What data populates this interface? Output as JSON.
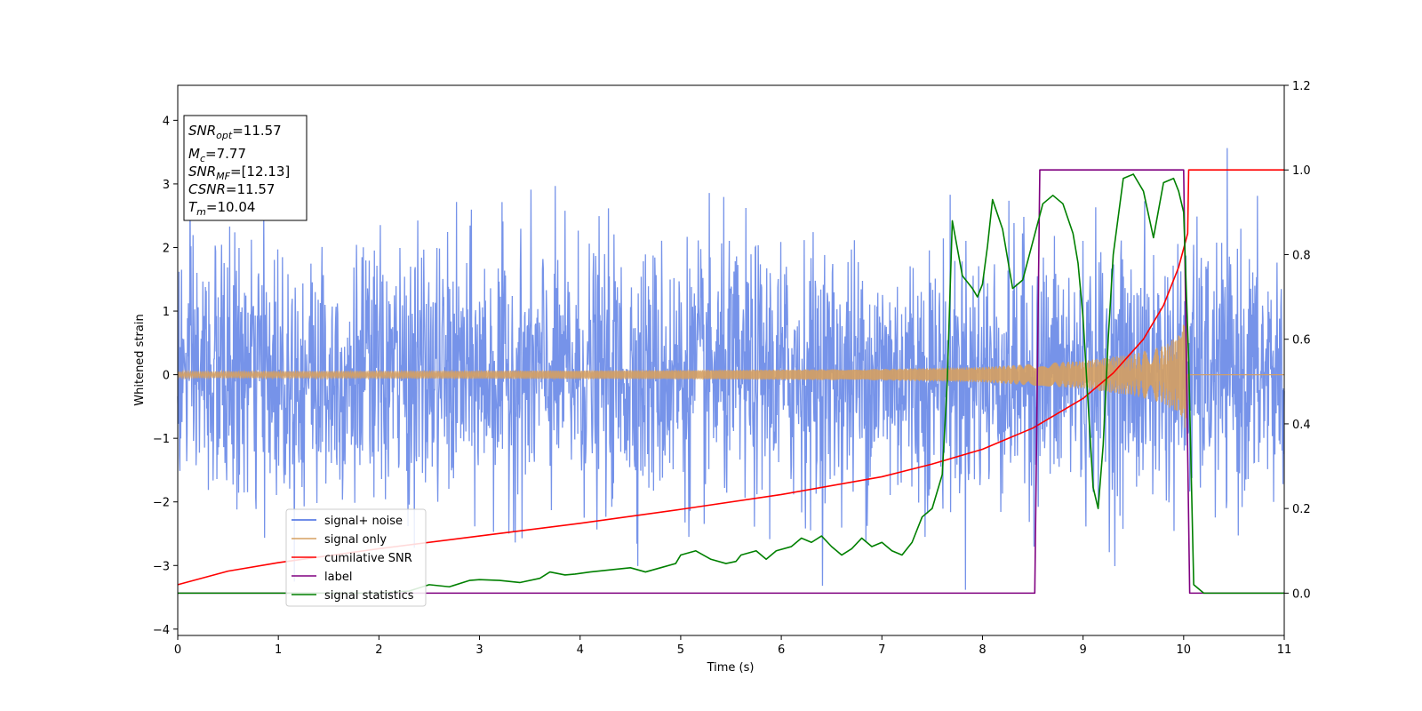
{
  "chart_data": {
    "type": "line",
    "xlabel": "Time (s)",
    "ylabel": "Whitened strain",
    "xlim": [
      0,
      11
    ],
    "ylim_left": [
      -4.1,
      4.55
    ],
    "ylim_right": [
      -0.1,
      1.2
    ],
    "x_ticks": [
      "0",
      "1",
      "2",
      "3",
      "4",
      "5",
      "6",
      "7",
      "8",
      "9",
      "10",
      "11"
    ],
    "y_ticks_left": [
      "−4",
      "−3",
      "−2",
      "−1",
      "0",
      "1",
      "2",
      "3",
      "4"
    ],
    "y_ticks_right": [
      "0.0",
      "0.2",
      "0.4",
      "0.6",
      "0.8",
      "1.0",
      "1.2"
    ],
    "grid": false,
    "legend_position": "lower-left",
    "annotation": {
      "snr_opt": {
        "sym": "SNR",
        "sub": "opt",
        "val": "=11.57"
      },
      "mc": {
        "sym": "M",
        "sub": "c",
        "val": "=7.77"
      },
      "snr_mf": {
        "sym": "SNR",
        "sub": "MF",
        "val": "=[12.13]"
      },
      "csnr": {
        "sym": "CSNR",
        "val": "=11.57"
      },
      "tm": {
        "sym": "T",
        "sub": "m",
        "val": "=10.04"
      }
    },
    "series": [
      {
        "name": "signal+ noise",
        "axis": "left",
        "color": "#4169e1",
        "description_of_content": "noise",
        "noise_sigma": 1.0,
        "envelope_min": -3.75,
        "envelope_max": 4.15,
        "t_end": 11.0
      },
      {
        "name": "signal only",
        "axis": "left",
        "color": "#d6a060",
        "chirp_amplitude": [
          [
            0,
            0.05
          ],
          [
            5,
            0.07
          ],
          [
            7,
            0.09
          ],
          [
            8,
            0.12
          ],
          [
            9,
            0.22
          ],
          [
            9.5,
            0.33
          ],
          [
            9.8,
            0.45
          ],
          [
            9.95,
            0.62
          ],
          [
            10.04,
            0.95
          ]
        ],
        "t_merge": 10.04
      },
      {
        "name": "cumilative SNR",
        "axis": "right",
        "color": "#ff0000",
        "x": [
          0,
          0.5,
          1,
          2,
          3,
          4,
          5,
          6,
          7,
          7.5,
          8,
          8.5,
          9,
          9.3,
          9.6,
          9.8,
          9.95,
          10.04,
          10.05,
          11
        ],
        "y": [
          0.02,
          0.052,
          0.072,
          0.105,
          0.135,
          0.165,
          0.198,
          0.233,
          0.275,
          0.305,
          0.34,
          0.39,
          0.46,
          0.52,
          0.6,
          0.68,
          0.77,
          0.85,
          1.0,
          1.0
        ]
      },
      {
        "name": "label",
        "axis": "right",
        "color": "#800080",
        "x": [
          0,
          8.52,
          8.57,
          10.0,
          10.06,
          11
        ],
        "y": [
          0.0,
          0.0,
          1.0,
          1.0,
          0.0,
          0.0
        ]
      },
      {
        "name": "signal statistics",
        "axis": "right",
        "color": "#008000",
        "x": [
          0,
          0.5,
          1,
          1.5,
          2,
          2.3,
          2.5,
          2.7,
          2.9,
          3.0,
          3.2,
          3.4,
          3.6,
          3.7,
          3.85,
          3.95,
          4.1,
          4.3,
          4.5,
          4.65,
          4.8,
          4.95,
          5.0,
          5.15,
          5.3,
          5.45,
          5.55,
          5.6,
          5.75,
          5.85,
          5.95,
          6.1,
          6.2,
          6.3,
          6.4,
          6.5,
          6.6,
          6.7,
          6.8,
          6.9,
          7.0,
          7.1,
          7.2,
          7.3,
          7.4,
          7.5,
          7.6,
          7.65,
          7.7,
          7.8,
          7.9,
          7.95,
          8.0,
          8.05,
          8.1,
          8.2,
          8.3,
          8.4,
          8.5,
          8.6,
          8.7,
          8.8,
          8.9,
          8.95,
          9.0,
          9.05,
          9.1,
          9.15,
          9.2,
          9.25,
          9.3,
          9.4,
          9.5,
          9.6,
          9.7,
          9.8,
          9.9,
          9.95,
          10.0,
          10.05,
          10.1,
          10.2,
          10.5,
          11.0
        ],
        "y": [
          0.0,
          0.0,
          0.0,
          0.0,
          0.0,
          0.005,
          0.02,
          0.015,
          0.03,
          0.032,
          0.03,
          0.025,
          0.035,
          0.05,
          0.043,
          0.045,
          0.05,
          0.055,
          0.06,
          0.05,
          0.06,
          0.07,
          0.09,
          0.1,
          0.08,
          0.07,
          0.075,
          0.09,
          0.1,
          0.08,
          0.1,
          0.11,
          0.13,
          0.12,
          0.135,
          0.11,
          0.09,
          0.105,
          0.13,
          0.11,
          0.12,
          0.1,
          0.09,
          0.12,
          0.18,
          0.2,
          0.28,
          0.5,
          0.88,
          0.75,
          0.72,
          0.7,
          0.73,
          0.82,
          0.93,
          0.86,
          0.72,
          0.74,
          0.83,
          0.92,
          0.94,
          0.92,
          0.85,
          0.78,
          0.65,
          0.45,
          0.25,
          0.2,
          0.35,
          0.6,
          0.8,
          0.98,
          0.99,
          0.95,
          0.84,
          0.97,
          0.98,
          0.95,
          0.9,
          0.55,
          0.02,
          0.0,
          0.0,
          0.0
        ]
      }
    ]
  }
}
